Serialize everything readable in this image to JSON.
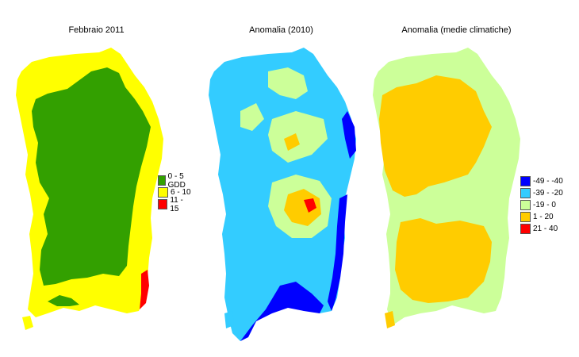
{
  "panels": [
    {
      "title": "Febbraio 2011",
      "legend": [
        {
          "label": "0 - 5 GDD",
          "color": "#33a000"
        },
        {
          "label": "6 - 10",
          "color": "#ffff00"
        },
        {
          "label": "11 - 15",
          "color": "#ff0000"
        }
      ]
    },
    {
      "title": "Anomalia (2010)",
      "legend": []
    },
    {
      "title": "Anomalia (medie climatiche)",
      "legend": [
        {
          "label": "-49 - -40",
          "color": "#0000ff"
        },
        {
          "label": "-39 - -20",
          "color": "#33ccff"
        },
        {
          "label": "-19 - 0",
          "color": "#ccff99"
        },
        {
          "label": "1 - 20",
          "color": "#ffcc00"
        },
        {
          "label": "21 - 40",
          "color": "#ff0000"
        }
      ]
    }
  ]
}
